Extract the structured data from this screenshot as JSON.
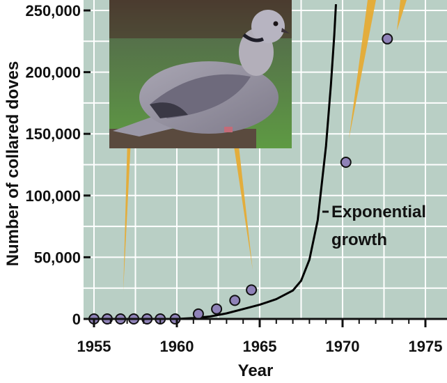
{
  "chart_data": {
    "type": "scatter",
    "title": "",
    "xlabel": "Year",
    "ylabel": "Number of collared doves",
    "xlim": [
      1955,
      1975
    ],
    "ylim": [
      0,
      250000
    ],
    "x_ticks": [
      1955,
      1960,
      1965,
      1970,
      1975
    ],
    "x_tick_labels": [
      "1955",
      "1960",
      "1965",
      "1970",
      "1975"
    ],
    "y_ticks": [
      0,
      50000,
      100000,
      150000,
      200000,
      250000
    ],
    "y_tick_labels": [
      "0",
      "50,000",
      "100,000",
      "150,000",
      "200,000",
      "250,000"
    ],
    "grid": true,
    "background_color": "#b9cfc5",
    "grid_color": "#ffffff",
    "point_color": "#8f82b8",
    "curve_color": "#000000",
    "series": [
      {
        "type": "scatter",
        "x": [
          1955.0,
          1955.8,
          1956.6,
          1957.4,
          1958.2,
          1959.0,
          1959.9,
          1961.3,
          1962.4,
          1963.5,
          1964.5,
          1970.2,
          1972.7
        ],
        "y": [
          0,
          0,
          0,
          0,
          0,
          0,
          0,
          4000,
          8000,
          15000,
          23500,
          127000,
          227000
        ]
      },
      {
        "type": "line",
        "x": [
          1960,
          1961,
          1962,
          1963,
          1964,
          1965,
          1966,
          1967,
          1967.5,
          1968,
          1968.5,
          1969,
          1969.3,
          1969.5,
          1969.6
        ],
        "y": [
          0,
          700,
          2000,
          4500,
          8000,
          11500,
          16000,
          23000,
          31000,
          48000,
          80000,
          140000,
          190000,
          230000,
          255000
        ]
      }
    ],
    "annotations": [
      {
        "text_lines": [
          "Exponential",
          "growth"
        ],
        "x": 1968.6,
        "y": 88000
      }
    ]
  },
  "photo": {
    "subject": "collared-dove"
  }
}
